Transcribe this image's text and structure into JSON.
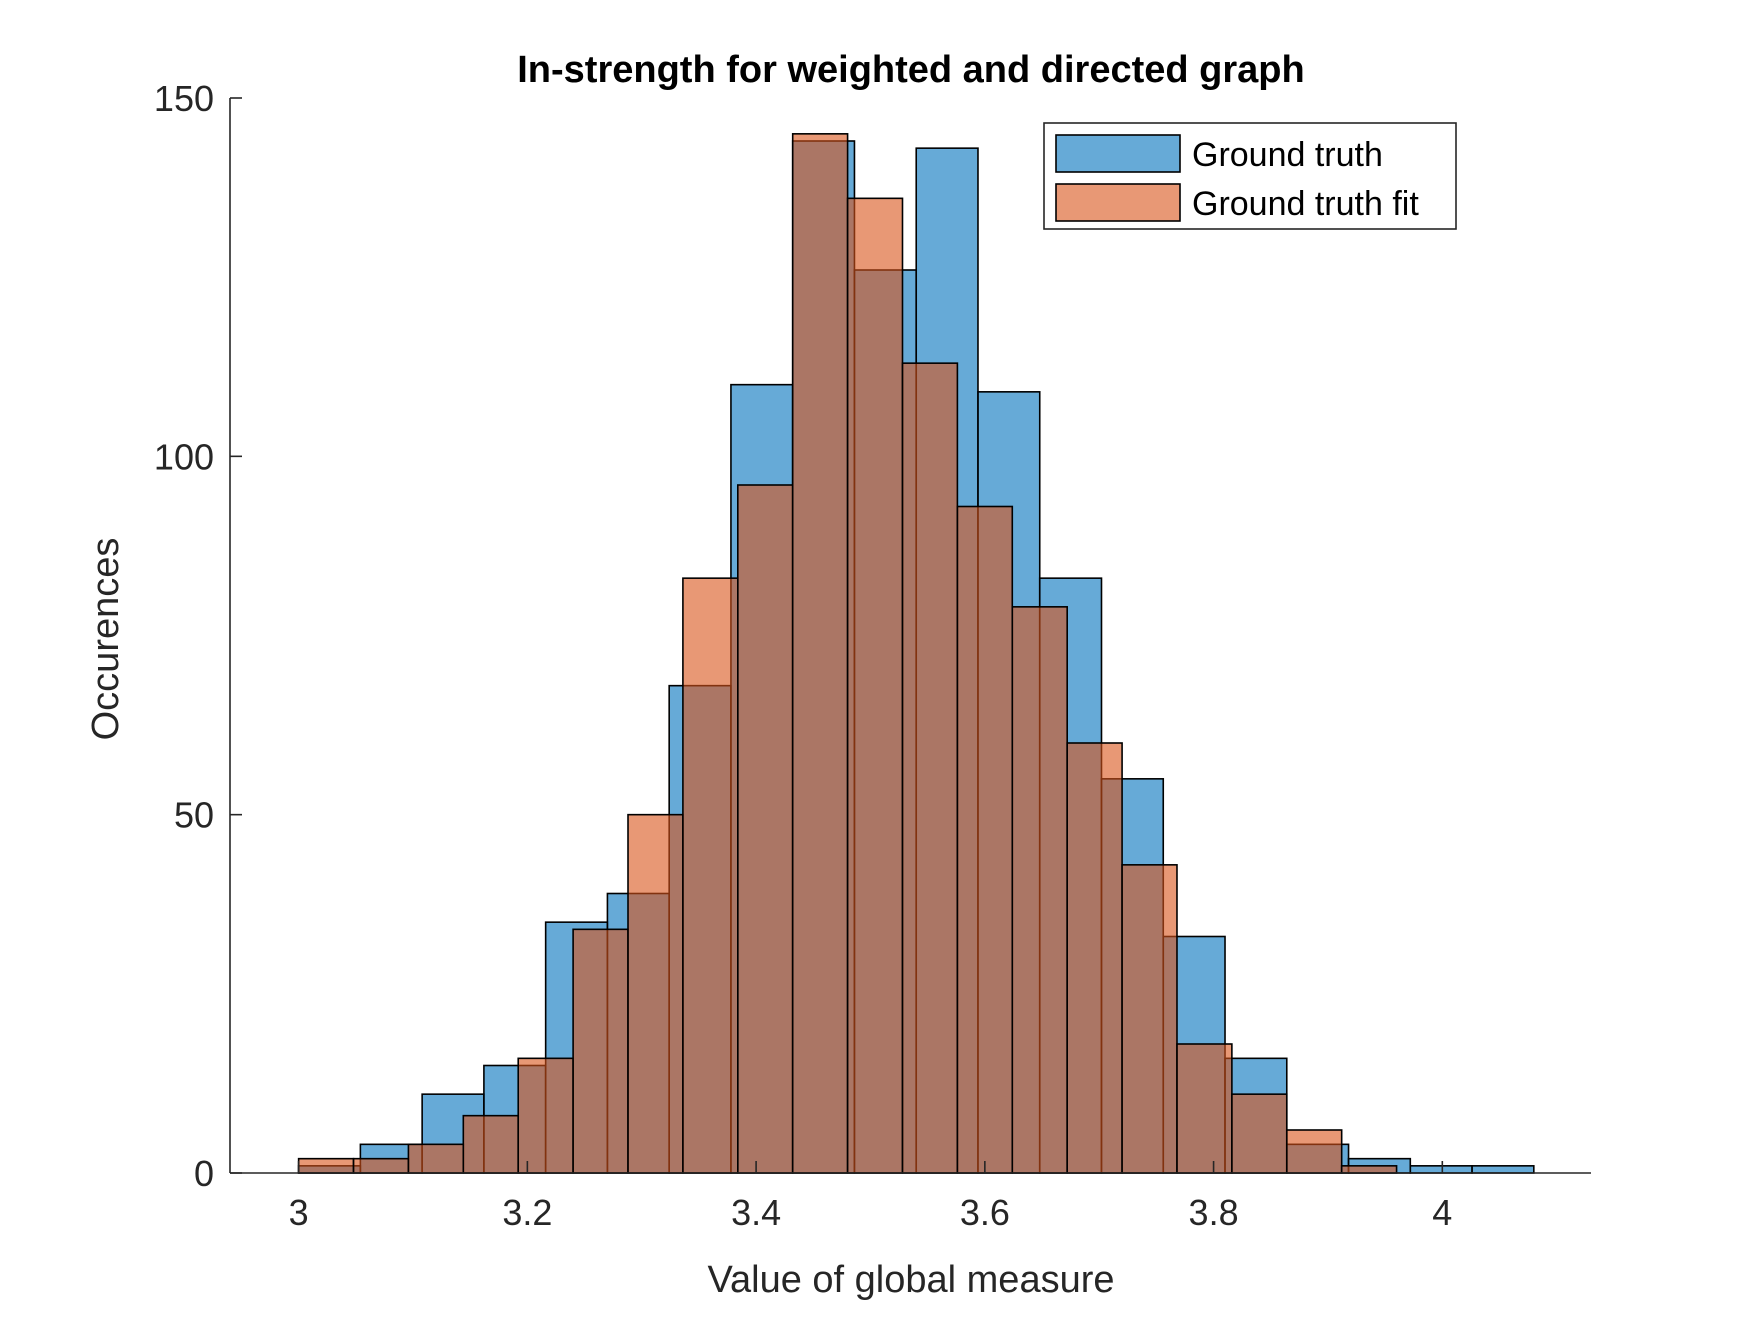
{
  "chart_data": {
    "type": "bar",
    "title": "In-strength for weighted and directed graph",
    "xlabel": "Value of global measure",
    "ylabel": "Occurences",
    "xlim": [
      2.94,
      4.13
    ],
    "ylim": [
      0,
      150
    ],
    "xticks": [
      3,
      3.2,
      3.4,
      3.6,
      3.8,
      4
    ],
    "xtick_labels": [
      "3",
      "3.2",
      "3.4",
      "3.6",
      "3.8",
      "4"
    ],
    "yticks": [
      0,
      50,
      100,
      150
    ],
    "ytick_labels": [
      "0",
      "50",
      "100",
      "150"
    ],
    "grid": false,
    "legend_position": "top-right",
    "series": [
      {
        "name": "Ground truth",
        "color": "#0072BD",
        "bin_edges": [
          3.0,
          3.054,
          3.108,
          3.162,
          3.216,
          3.27,
          3.324,
          3.378,
          3.432,
          3.486,
          3.54,
          3.594,
          3.648,
          3.702,
          3.756,
          3.81,
          3.864,
          3.918,
          3.972,
          4.026,
          4.08
        ],
        "values": [
          1,
          4,
          11,
          15,
          35,
          39,
          68,
          110,
          144,
          126,
          143,
          109,
          83,
          55,
          33,
          16,
          4,
          2,
          1,
          1
        ]
      },
      {
        "name": "Ground truth fit",
        "color": "#D95319",
        "bin_edges": [
          3.0,
          3.048,
          3.096,
          3.144,
          3.192,
          3.24,
          3.288,
          3.336,
          3.384,
          3.432,
          3.48,
          3.528,
          3.576,
          3.624,
          3.672,
          3.72,
          3.768,
          3.816,
          3.864,
          3.912,
          3.96
        ],
        "values": [
          2,
          2,
          4,
          8,
          16,
          34,
          50,
          83,
          96,
          145,
          136,
          113,
          93,
          79,
          60,
          43,
          18,
          11,
          6,
          1
        ]
      }
    ]
  }
}
